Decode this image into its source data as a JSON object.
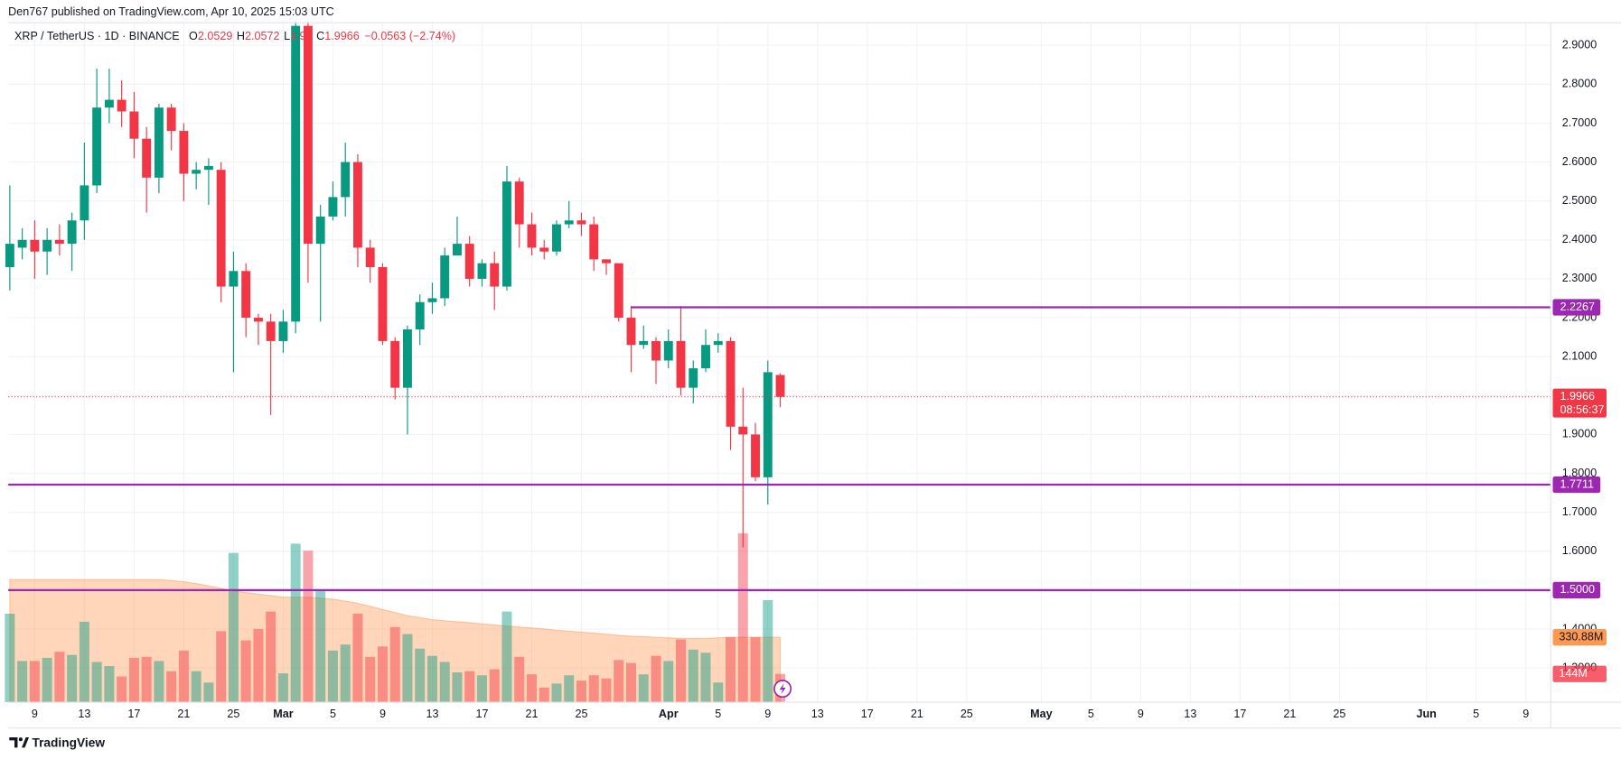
{
  "header": "Den767 published on TradingView.com, Apr 10, 2025 15:03 UTC",
  "footer": "TradingView",
  "chart_data": {
    "type": "candlestick",
    "symbol": "XRP / TetherUS · 1D · BINANCE",
    "legend_keys": [
      "O",
      "H",
      "L",
      "C"
    ],
    "change": "−0.0563 (−2.74%)",
    "countdown": "08:56:37",
    "up_color": "#089981",
    "down_color": "#f23645",
    "line_color": "#9c27b0",
    "volume_ma_color": "#ff9850",
    "grid": true,
    "x": [
      "2025-02-07",
      "2025-02-08",
      "2025-02-09",
      "2025-02-10",
      "2025-02-11",
      "2025-02-12",
      "2025-02-13",
      "2025-02-14",
      "2025-02-15",
      "2025-02-16",
      "2025-02-17",
      "2025-02-18",
      "2025-02-19",
      "2025-02-20",
      "2025-02-21",
      "2025-02-22",
      "2025-02-23",
      "2025-02-24",
      "2025-02-25",
      "2025-02-26",
      "2025-02-27",
      "2025-02-28",
      "2025-03-01",
      "2025-03-02",
      "2025-03-03",
      "2025-03-04",
      "2025-03-05",
      "2025-03-06",
      "2025-03-07",
      "2025-03-08",
      "2025-03-09",
      "2025-03-10",
      "2025-03-11",
      "2025-03-12",
      "2025-03-13",
      "2025-03-14",
      "2025-03-15",
      "2025-03-16",
      "2025-03-17",
      "2025-03-18",
      "2025-03-19",
      "2025-03-20",
      "2025-03-21",
      "2025-03-22",
      "2025-03-23",
      "2025-03-24",
      "2025-03-25",
      "2025-03-26",
      "2025-03-27",
      "2025-03-28",
      "2025-03-29",
      "2025-03-30",
      "2025-03-31",
      "2025-04-01",
      "2025-04-02",
      "2025-04-03",
      "2025-04-04",
      "2025-04-05",
      "2025-04-06",
      "2025-04-07",
      "2025-04-08",
      "2025-04-09",
      "2025-04-10"
    ],
    "open": [
      2.33,
      2.38,
      2.4,
      2.37,
      2.4,
      2.39,
      2.45,
      2.54,
      2.74,
      2.76,
      2.73,
      2.66,
      2.56,
      2.74,
      2.68,
      2.57,
      2.58,
      2.58,
      2.28,
      2.32,
      2.2,
      2.19,
      2.14,
      2.19,
      2.95,
      2.39,
      2.46,
      2.51,
      2.6,
      2.38,
      2.33,
      2.14,
      2.02,
      2.17,
      2.24,
      2.25,
      2.36,
      2.39,
      2.3,
      2.34,
      2.28,
      2.55,
      2.44,
      2.38,
      2.37,
      2.44,
      2.45,
      2.44,
      2.35,
      2.34,
      2.2,
      2.13,
      2.14,
      2.09,
      2.14,
      2.02,
      2.07,
      2.13,
      2.14,
      1.92,
      1.9,
      1.79,
      2.0529
    ],
    "high": [
      2.54,
      2.43,
      2.45,
      2.43,
      2.44,
      2.47,
      2.65,
      2.84,
      2.84,
      2.81,
      2.78,
      2.69,
      2.75,
      2.75,
      2.7,
      2.6,
      2.61,
      2.6,
      2.37,
      2.34,
      2.21,
      2.21,
      2.22,
      2.96,
      2.96,
      2.49,
      2.55,
      2.65,
      2.62,
      2.4,
      2.34,
      2.15,
      2.18,
      2.26,
      2.29,
      2.38,
      2.46,
      2.41,
      2.35,
      2.37,
      2.59,
      2.56,
      2.47,
      2.4,
      2.45,
      2.5,
      2.47,
      2.46,
      2.35,
      2.34,
      2.23,
      2.18,
      2.15,
      2.17,
      2.23,
      2.09,
      2.17,
      2.16,
      2.15,
      2.02,
      1.93,
      2.09,
      2.0572
    ],
    "low": [
      2.27,
      2.35,
      2.3,
      2.31,
      2.36,
      2.32,
      2.4,
      2.52,
      2.7,
      2.69,
      2.61,
      2.47,
      2.52,
      2.63,
      2.5,
      2.53,
      2.49,
      2.24,
      2.06,
      2.15,
      2.13,
      1.95,
      2.11,
      2.16,
      2.29,
      2.19,
      2.45,
      2.46,
      2.33,
      2.29,
      2.13,
      1.99,
      1.9,
      2.13,
      2.21,
      2.23,
      2.36,
      2.28,
      2.28,
      2.22,
      2.27,
      2.38,
      2.36,
      2.35,
      2.36,
      2.43,
      2.41,
      2.32,
      2.31,
      2.19,
      2.06,
      2.12,
      2.03,
      2.07,
      2.0,
      1.98,
      2.06,
      2.11,
      1.86,
      1.61,
      1.78,
      1.72,
      1.97
    ],
    "close": [
      2.39,
      2.4,
      2.37,
      2.4,
      2.39,
      2.45,
      2.54,
      2.74,
      2.76,
      2.73,
      2.66,
      2.56,
      2.74,
      2.68,
      2.57,
      2.58,
      2.59,
      2.28,
      2.32,
      2.2,
      2.19,
      2.14,
      2.19,
      2.95,
      2.39,
      2.46,
      2.51,
      2.6,
      2.38,
      2.33,
      2.14,
      2.02,
      2.17,
      2.24,
      2.25,
      2.36,
      2.39,
      2.3,
      2.34,
      2.28,
      2.55,
      2.44,
      2.38,
      2.37,
      2.44,
      2.45,
      2.44,
      2.35,
      2.34,
      2.2,
      2.13,
      2.14,
      2.09,
      2.14,
      2.02,
      2.07,
      2.13,
      2.14,
      1.92,
      1.9,
      1.79,
      2.06,
      1.9966
    ],
    "volume": [
      451,
      210,
      210,
      226,
      257,
      241,
      410,
      205,
      184,
      131,
      226,
      231,
      210,
      158,
      263,
      158,
      100,
      362,
      761,
      315,
      373,
      462,
      147,
      808,
      772,
      567,
      263,
      294,
      451,
      231,
      284,
      383,
      347,
      273,
      236,
      205,
      152,
      158,
      137,
      168,
      462,
      231,
      142,
      74,
      95,
      137,
      110,
      137,
      121,
      215,
      200,
      142,
      236,
      210,
      320,
      268,
      252,
      100,
      331,
      861,
      331,
      520,
      144
    ],
    "volume_ma": [
      625,
      625,
      625,
      625,
      625,
      625,
      625,
      625,
      625,
      625,
      625,
      625,
      625,
      620,
      614,
      604,
      593,
      580,
      567,
      559,
      551,
      543,
      535,
      535,
      535,
      530,
      525,
      515,
      504,
      488,
      472,
      457,
      441,
      431,
      420,
      415,
      410,
      405,
      399,
      394,
      388,
      383,
      378,
      373,
      367,
      362,
      357,
      352,
      346,
      341,
      336,
      334,
      331,
      328,
      325,
      325,
      325,
      328,
      331,
      331,
      331,
      331,
      330.88
    ],
    "volume_labels": {
      "ma": {
        "value": 330.88,
        "label": "330.88M"
      },
      "volume": {
        "value": 144,
        "label": "144M"
      }
    },
    "vlim": [
      0,
      1000
    ],
    "xlim": [
      "2025-02-07",
      "2025-06-11"
    ],
    "xticks": [
      {
        "value": "2025-02-09",
        "label": "9"
      },
      {
        "value": "2025-02-13",
        "label": "13"
      },
      {
        "value": "2025-02-17",
        "label": "17"
      },
      {
        "value": "2025-02-21",
        "label": "21"
      },
      {
        "value": "2025-02-25",
        "label": "25"
      },
      {
        "value": "2025-03-01",
        "label": "Mar"
      },
      {
        "value": "2025-03-05",
        "label": "5"
      },
      {
        "value": "2025-03-09",
        "label": "9"
      },
      {
        "value": "2025-03-13",
        "label": "13"
      },
      {
        "value": "2025-03-17",
        "label": "17"
      },
      {
        "value": "2025-03-21",
        "label": "21"
      },
      {
        "value": "2025-03-25",
        "label": "25"
      },
      {
        "value": "2025-04-01",
        "label": "Apr"
      },
      {
        "value": "2025-04-05",
        "label": "5"
      },
      {
        "value": "2025-04-09",
        "label": "9"
      },
      {
        "value": "2025-04-13",
        "label": "13"
      },
      {
        "value": "2025-04-17",
        "label": "17"
      },
      {
        "value": "2025-04-21",
        "label": "21"
      },
      {
        "value": "2025-04-25",
        "label": "25"
      },
      {
        "value": "2025-05-01",
        "label": "May"
      },
      {
        "value": "2025-05-05",
        "label": "5"
      },
      {
        "value": "2025-05-09",
        "label": "9"
      },
      {
        "value": "2025-05-13",
        "label": "13"
      },
      {
        "value": "2025-05-17",
        "label": "17"
      },
      {
        "value": "2025-05-21",
        "label": "21"
      },
      {
        "value": "2025-05-25",
        "label": "25"
      },
      {
        "value": "2025-06-01",
        "label": "Jun"
      },
      {
        "value": "2025-06-05",
        "label": "5"
      },
      {
        "value": "2025-06-09",
        "label": "9"
      }
    ],
    "ylim": [
      1.212,
      2.958
    ],
    "yticks": [
      {
        "value": 1.3,
        "label": "1.3000"
      },
      {
        "value": 1.4,
        "label": "1.4000"
      },
      {
        "value": 1.5,
        "label": "1.5000"
      },
      {
        "value": 1.6,
        "label": "1.6000"
      },
      {
        "value": 1.7,
        "label": "1.7000"
      },
      {
        "value": 1.8,
        "label": "1.8000"
      },
      {
        "value": 1.9,
        "label": "1.9000"
      },
      {
        "value": 2.0,
        "label": "2.0000"
      },
      {
        "value": 2.1,
        "label": "2.1000"
      },
      {
        "value": 2.2,
        "label": "2.2000"
      },
      {
        "value": 2.3,
        "label": "2.3000"
      },
      {
        "value": 2.4,
        "label": "2.4000"
      },
      {
        "value": 2.5,
        "label": "2.5000"
      },
      {
        "value": 2.6,
        "label": "2.6000"
      },
      {
        "value": 2.7,
        "label": "2.7000"
      },
      {
        "value": 2.8,
        "label": "2.8000"
      },
      {
        "value": 2.9,
        "label": "2.9000"
      }
    ],
    "hlines": [
      {
        "value": 2.2267,
        "start": "2025-03-29"
      },
      {
        "value": 1.7711
      },
      {
        "value": 1.5,
        "label": "1.5000"
      }
    ]
  }
}
